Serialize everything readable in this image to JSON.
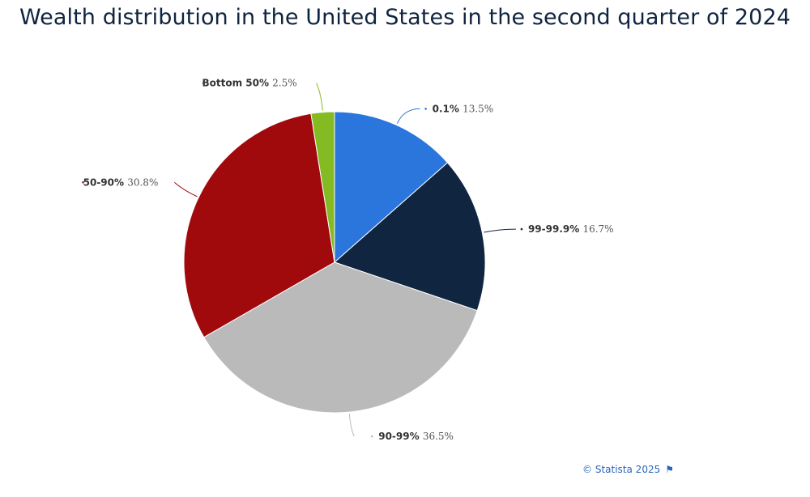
{
  "title": "Wealth distribution in the United States in the second quarter of 2024",
  "copyright": "© Statista 2025",
  "chart_data": {
    "type": "pie",
    "title": "Wealth distribution in the United States in the second quarter of 2024",
    "unit": "%",
    "slices": [
      {
        "name": "0.1%",
        "value": 13.5,
        "label": "13.5%",
        "color": "#2a76dd",
        "label_side": "right"
      },
      {
        "name": "99-99.9%",
        "value": 16.7,
        "label": "16.7%",
        "color": "#10253f",
        "label_side": "right"
      },
      {
        "name": "90-99%",
        "value": 36.5,
        "label": "36.5%",
        "color": "#bababa",
        "label_side": "bottom"
      },
      {
        "name": "50-90%",
        "value": 30.8,
        "label": "30.8%",
        "color": "#a10a0d",
        "label_side": "left"
      },
      {
        "name": "Bottom 50%",
        "value": 2.5,
        "label": "2.5%",
        "color": "#84bb22",
        "label_side": "top"
      }
    ],
    "start_angle": "12 o'clock",
    "direction": "clockwise",
    "legend": "none",
    "data_labels": "outside with connector lines"
  }
}
